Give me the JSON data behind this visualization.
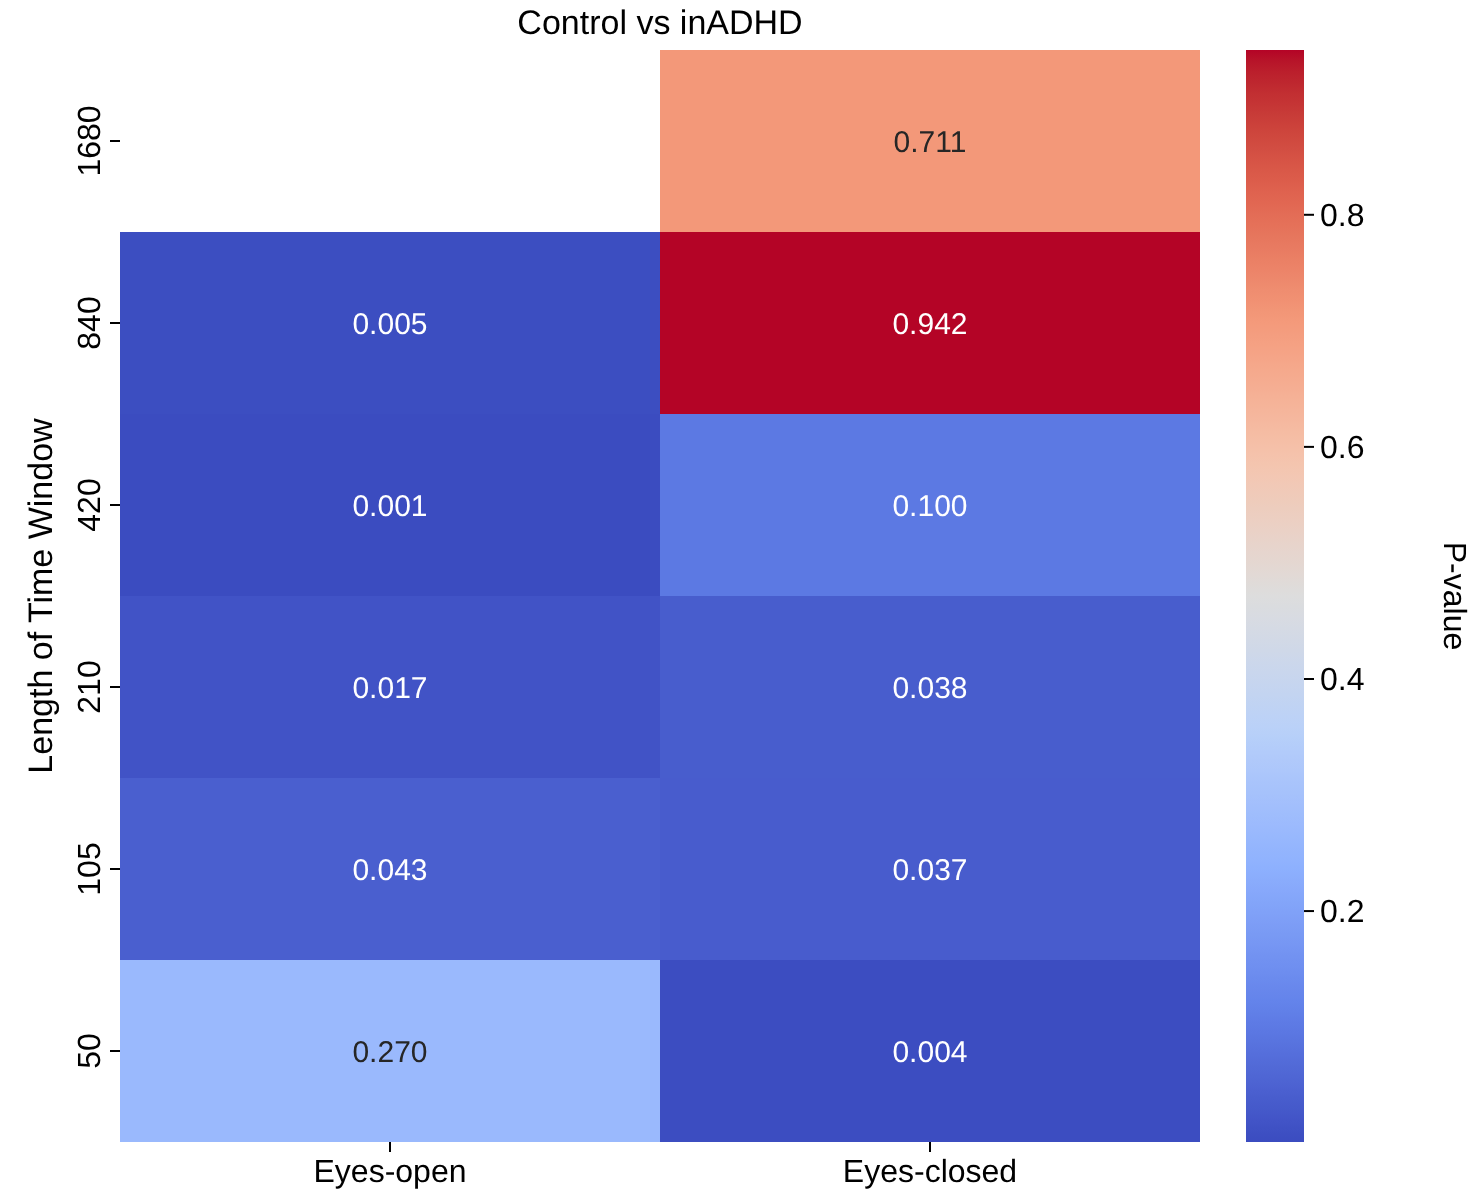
{
  "chart_data": {
    "type": "heatmap",
    "title": "Control vs inADHD",
    "ylabel": "Length of Time Window",
    "clabel": "P-value",
    "categories": [
      "Eyes-open",
      "Eyes-closed"
    ],
    "y_categories": [
      "1680",
      "840",
      "420",
      "210",
      "105",
      "50"
    ],
    "cells": [
      [
        null,
        0.711
      ],
      [
        0.005,
        0.942
      ],
      [
        0.001,
        0.1
      ],
      [
        0.017,
        0.038
      ],
      [
        0.043,
        0.037
      ],
      [
        0.27,
        0.004
      ]
    ],
    "cell_labels": [
      [
        null,
        "0.711"
      ],
      [
        "0.005",
        "0.942"
      ],
      [
        "0.001",
        "0.100"
      ],
      [
        "0.017",
        "0.038"
      ],
      [
        "0.043",
        "0.037"
      ],
      [
        "0.270",
        "0.004"
      ]
    ],
    "clim": [
      0.001,
      0.942
    ],
    "cticks": [
      0.2,
      0.4,
      0.6,
      0.8
    ]
  }
}
